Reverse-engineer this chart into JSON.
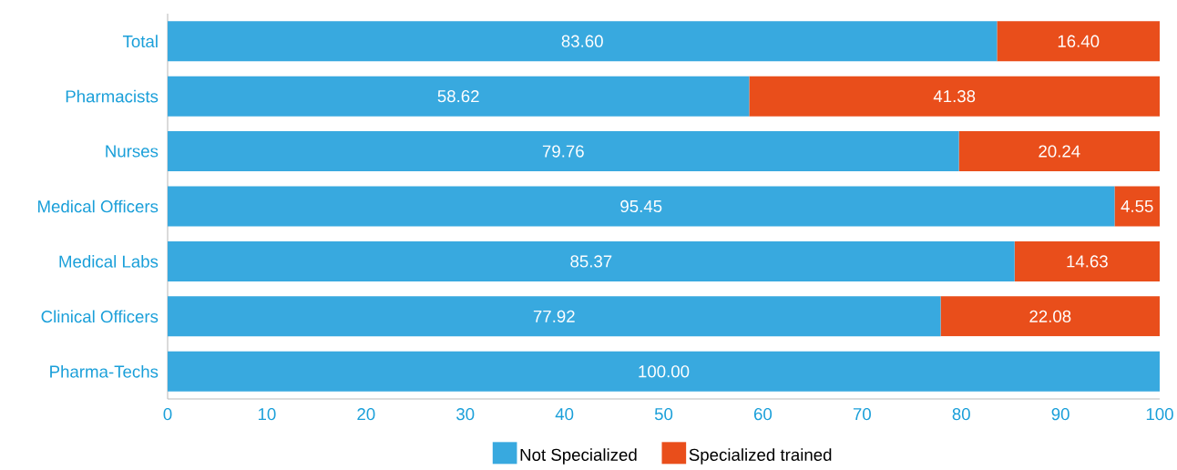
{
  "chart_data": {
    "type": "bar",
    "orientation": "horizontal",
    "stacked": true,
    "categories": [
      "Total",
      "Pharmacists",
      "Nurses",
      "Medical Officers",
      "Medical Labs",
      "Clinical Officers",
      "Pharma-Techs"
    ],
    "series": [
      {
        "name": "Not Specialized",
        "color": "#38a9df",
        "values": [
          83.6,
          58.62,
          79.76,
          95.45,
          85.37,
          77.92,
          100.0
        ],
        "value_labels": [
          "83.60",
          "58.62",
          "79.76",
          "95.45",
          "85.37",
          "77.92",
          "100.00"
        ]
      },
      {
        "name": "Specialized trained",
        "color": "#e94e1b",
        "values": [
          16.4,
          41.38,
          20.24,
          4.55,
          14.63,
          22.08,
          0
        ],
        "value_labels": [
          "16.40",
          "41.38",
          "20.24",
          "4.55",
          "14.63",
          "22.08",
          null
        ]
      }
    ],
    "xlim": [
      0,
      100
    ],
    "xticks": [
      0,
      10,
      20,
      30,
      40,
      50,
      60,
      70,
      80,
      90,
      100
    ],
    "legend": "bottom"
  }
}
